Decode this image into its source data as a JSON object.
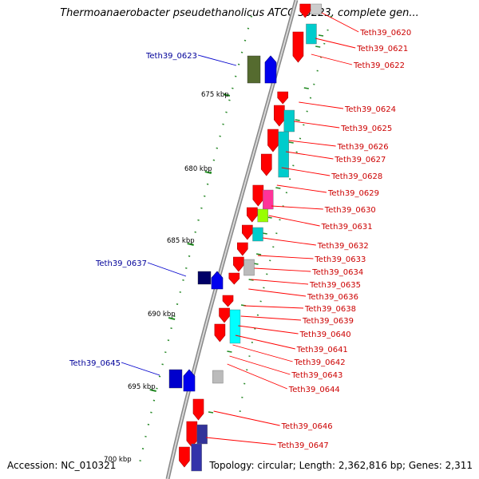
{
  "title": "Thermoanaerobacter pseudethanolicus ATCC 33223, complete gen...",
  "footer": {
    "accession": "Accession: NC_010321",
    "topology": "Topology: circular; Length: 2,362,816 bp; Genes: 2,311"
  },
  "colors": {
    "forward_strand": "#ff0000",
    "reverse_strand": "#0000ee",
    "ruler_ticks": "#228b22",
    "backbone": "#999999",
    "label_forward": "#cc0000",
    "label_reverse": "#000099"
  },
  "scale_labels": [
    "675 kbp",
    "680 kbp",
    "685 kbp",
    "690 kbp",
    "695 kbp",
    "700 kbp"
  ],
  "genes_right": [
    "Teth39_0620",
    "Teth39_0621",
    "Teth39_0622",
    "Teth39_0624",
    "Teth39_0625",
    "Teth39_0626",
    "Teth39_0627",
    "Teth39_0628",
    "Teth39_0629",
    "Teth39_0630",
    "Teth39_0631",
    "Teth39_0632",
    "Teth39_0633",
    "Teth39_0634",
    "Teth39_0635",
    "Teth39_0636",
    "Teth39_0638",
    "Teth39_0639",
    "Teth39_0640",
    "Teth39_0641",
    "Teth39_0642",
    "Teth39_0643",
    "Teth39_0644",
    "Teth39_0646",
    "Teth39_0647"
  ],
  "genes_left": [
    "Teth39_0623",
    "Teth39_0637",
    "Teth39_0645"
  ]
}
